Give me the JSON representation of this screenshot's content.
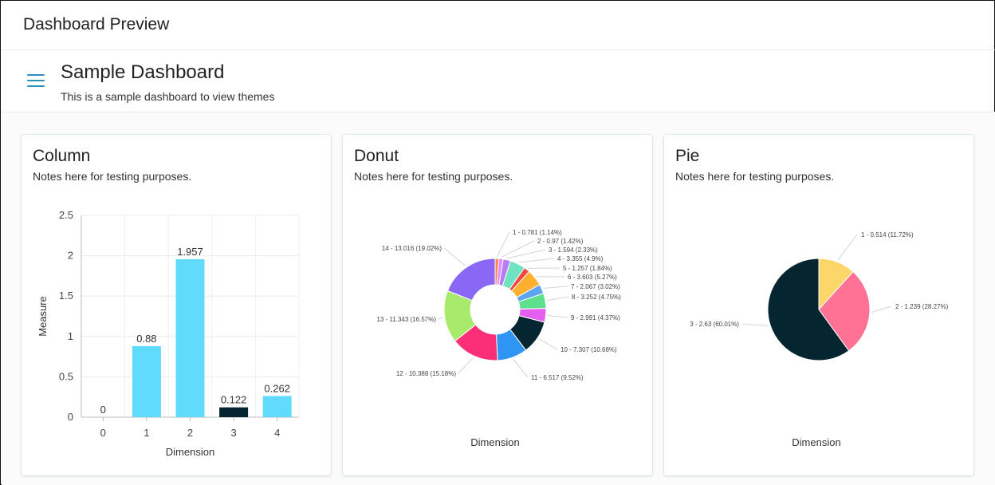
{
  "app": {
    "title": "Dashboard Preview"
  },
  "dashboard": {
    "title": "Sample Dashboard",
    "subtitle": "This is a sample dashboard to view themes",
    "menu_icon": "hamburger-menu-icon"
  },
  "colors": {
    "accent": "#2a91b8"
  },
  "cards": [
    {
      "title": "Column",
      "notes": "Notes here for testing purposes."
    },
    {
      "title": "Donut",
      "notes": "Notes here for testing purposes."
    },
    {
      "title": "Pie",
      "notes": "Notes here for testing purposes."
    }
  ],
  "chart_data": [
    {
      "type": "bar",
      "title": "Column",
      "xlabel": "Dimension",
      "ylabel": "Measure",
      "categories": [
        "0",
        "1",
        "2",
        "3",
        "4"
      ],
      "values": [
        0,
        0.88,
        1.957,
        0.122,
        0.262
      ],
      "labels": [
        "0",
        "0.88",
        "1.957",
        "0.122",
        "0.262"
      ],
      "colors": [
        "#60dbfb",
        "#60dbfb",
        "#60dbfb",
        "#052631",
        "#60dbfb"
      ],
      "ylim": [
        0,
        2.5
      ],
      "yticks": [
        {
          "v": 0,
          "label": "0"
        },
        {
          "v": 0.5,
          "label": "0.5"
        },
        {
          "v": 1,
          "label": "1"
        },
        {
          "v": 1.5,
          "label": "1.5"
        },
        {
          "v": 2,
          "label": "2"
        },
        {
          "v": 2.5,
          "label": "2.5"
        }
      ],
      "grid": true
    },
    {
      "type": "pie",
      "variant": "donut",
      "title": "Donut",
      "xlabel": "Dimension",
      "slices": [
        {
          "value": 0.781,
          "label": "1 - 0.781 (1.14%)",
          "color": "#ff7f50"
        },
        {
          "value": 0.97,
          "label": "2 - 0.97 (1.42%)",
          "color": "#e38ef0"
        },
        {
          "value": 1.594,
          "label": "3 - 1.594 (2.33%)",
          "color": "#b77cf5"
        },
        {
          "value": 3.355,
          "label": "4 - 3.355 (4.9%)",
          "color": "#6fe3c0"
        },
        {
          "value": 1.257,
          "label": "5 - 1.257 (1.84%)",
          "color": "#f2473e"
        },
        {
          "value": 3.603,
          "label": "6 - 3.603 (5.27%)",
          "color": "#ffb02e"
        },
        {
          "value": 2.067,
          "label": "7 - 2.067 (3.02%)",
          "color": "#5da4f0"
        },
        {
          "value": 3.252,
          "label": "8 - 3.252 (4.75%)",
          "color": "#5de08e"
        },
        {
          "value": 2.991,
          "label": "9 - 2.991 (4.37%)",
          "color": "#e45ef0"
        },
        {
          "value": 7.307,
          "label": "10 - 7.307 (10.68%)",
          "color": "#052631"
        },
        {
          "value": 6.517,
          "label": "11 - 6.517 (9.52%)",
          "color": "#2f95f2"
        },
        {
          "value": 10.388,
          "label": "12 - 10.388 (15.18%)",
          "color": "#fb2f78"
        },
        {
          "value": 11.343,
          "label": "13 - 11.343 (16.57%)",
          "color": "#a8ea6c"
        },
        {
          "value": 13.016,
          "label": "14 - 13.016 (19.02%)",
          "color": "#8a67f5"
        }
      ]
    },
    {
      "type": "pie",
      "title": "Pie",
      "xlabel": "Dimension",
      "slices": [
        {
          "value": 0.514,
          "label": "1 - 0.514 (11.72%)",
          "color": "#fdd66a"
        },
        {
          "value": 1.239,
          "label": "2 - 1.239 (28.27%)",
          "color": "#ff7295"
        },
        {
          "value": 2.63,
          "label": "3 - 2.63 (60.01%)",
          "color": "#052631"
        }
      ]
    }
  ]
}
